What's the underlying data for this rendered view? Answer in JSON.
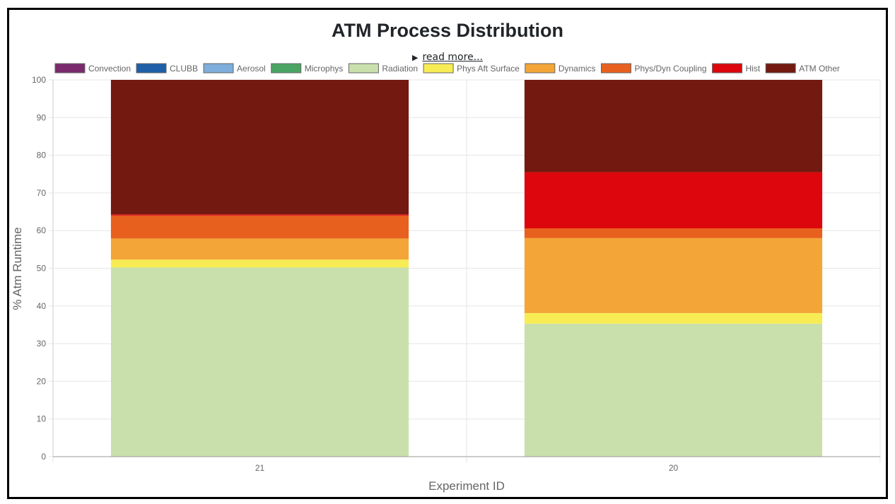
{
  "header": {
    "title": "ATM Process Distribution",
    "read_more": "read more...",
    "disclosure_icon": "triangle-right-icon"
  },
  "chart_data": {
    "type": "bar",
    "stacked": true,
    "title": "ATM Process Distribution",
    "xlabel": "Experiment ID",
    "ylabel": "% Atm Runtime",
    "ylim": [
      0,
      100
    ],
    "yticks": [
      0,
      10,
      20,
      30,
      40,
      50,
      60,
      70,
      80,
      90,
      100
    ],
    "categories": [
      "21",
      "20"
    ],
    "grid": true,
    "legend_position": "top",
    "series": [
      {
        "name": "Convection",
        "color": "#7b2a6e",
        "values": [
          0,
          0
        ]
      },
      {
        "name": "CLUBB",
        "color": "#1f5fa8",
        "values": [
          0,
          0
        ]
      },
      {
        "name": "Aerosol",
        "color": "#7eaedb",
        "values": [
          0,
          0
        ]
      },
      {
        "name": "Microphys",
        "color": "#4aa564",
        "values": [
          0,
          0
        ]
      },
      {
        "name": "Radiation",
        "color": "#c9e0ad",
        "values": [
          50.2,
          35.3
        ]
      },
      {
        "name": "Phys Aft Surface",
        "color": "#f8ec55",
        "values": [
          2.1,
          2.8
        ]
      },
      {
        "name": "Dynamics",
        "color": "#f3a637",
        "values": [
          5.6,
          19.9
        ]
      },
      {
        "name": "Phys/Dyn Coupling",
        "color": "#e8601e",
        "values": [
          6.1,
          2.6
        ]
      },
      {
        "name": "Hist",
        "color": "#dc060c",
        "values": [
          0.3,
          14.9
        ]
      },
      {
        "name": "ATM Other",
        "color": "#73190f",
        "values": [
          35.7,
          24.5
        ]
      }
    ]
  }
}
